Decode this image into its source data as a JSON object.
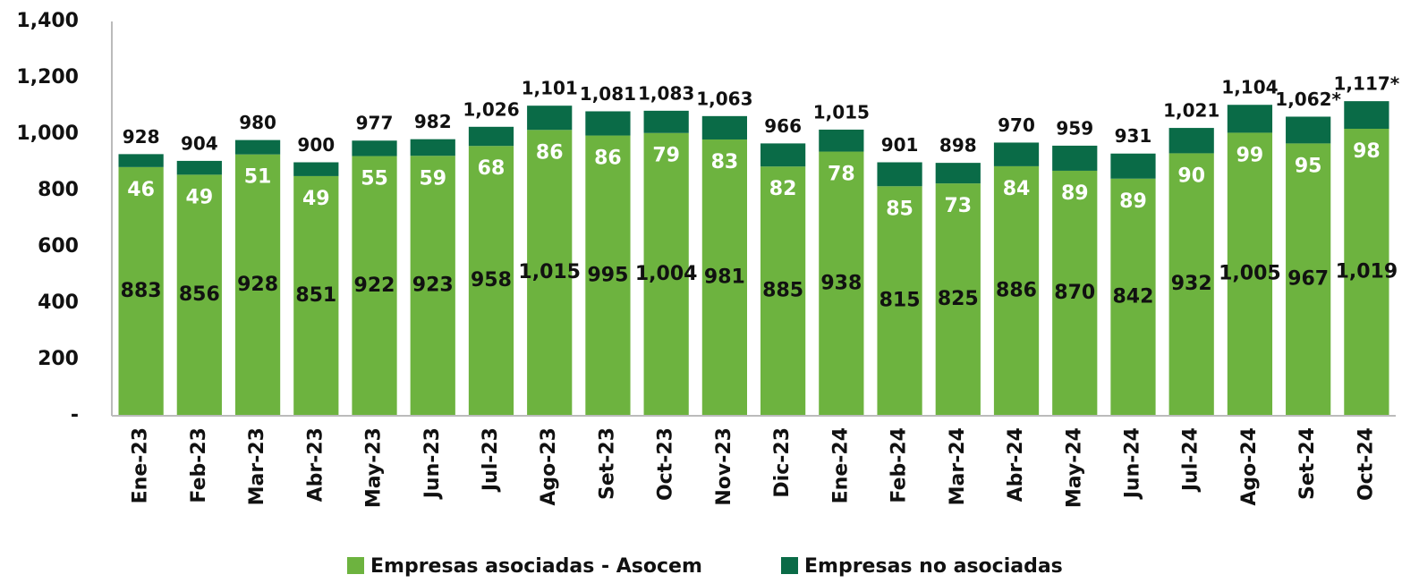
{
  "chart_data": {
    "type": "stacked_bar",
    "categories": [
      "Ene-23",
      "Feb-23",
      "Mar-23",
      "Abr-23",
      "May-23",
      "Jun-23",
      "Jul-23",
      "Ago-23",
      "Set-23",
      "Oct-23",
      "Nov-23",
      "Dic-23",
      "Ene-24",
      "Feb-24",
      "Mar-24",
      "Abr-24",
      "May-24",
      "Jun-24",
      "Jul-24",
      "Ago-24",
      "Set-24",
      "Oct-24"
    ],
    "series": [
      {
        "name": "Empresas asociadas - Asocem",
        "color": "#6db33f",
        "values": [
          883,
          856,
          928,
          851,
          922,
          923,
          958,
          1015,
          995,
          1004,
          981,
          885,
          938,
          815,
          825,
          886,
          870,
          842,
          932,
          1005,
          967,
          1019
        ],
        "value_labels": [
          "883",
          "856",
          "928",
          "851",
          "922",
          "923",
          "958",
          "1,015",
          "995",
          "1,004",
          "981",
          "885",
          "938",
          "815",
          "825",
          "886",
          "870",
          "842",
          "932",
          "1,005",
          "967",
          "1,019"
        ]
      },
      {
        "name": "Empresas no asociadas",
        "color": "#0a6b47",
        "values": [
          46,
          49,
          51,
          49,
          55,
          59,
          68,
          86,
          86,
          79,
          83,
          82,
          78,
          85,
          73,
          84,
          89,
          89,
          90,
          99,
          95,
          98
        ]
      }
    ],
    "total_labels": [
      "928",
      "904",
      "980",
      "900",
      "977",
      "982",
      "1,026",
      "1,101",
      "1,081",
      "1,083",
      "1,063",
      "966",
      "1,015",
      "901",
      "898",
      "970",
      "959",
      "931",
      "1,021",
      "1,104",
      "1,062*",
      "1,117*"
    ],
    "ylim": [
      0,
      1400
    ],
    "yticks": [
      {
        "value": 0,
        "label": "-"
      },
      200,
      400,
      600,
      800,
      {
        "value": 1000,
        "label": "1,000"
      },
      {
        "value": 1200,
        "label": "1,200"
      },
      {
        "value": 1400,
        "label": "1,400"
      }
    ],
    "grid": false,
    "legend": "bottom"
  }
}
